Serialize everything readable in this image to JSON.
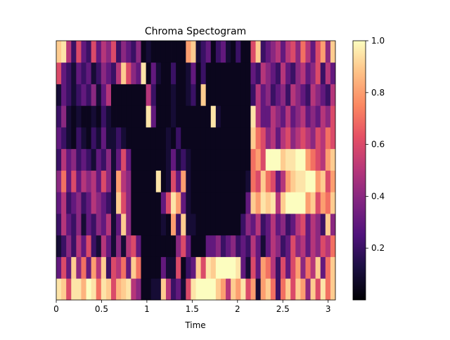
{
  "chart_data": {
    "type": "heatmap",
    "title": "Chroma Spectogram",
    "xlabel": "Time",
    "ylabel": "",
    "xlim": [
      0,
      3.08
    ],
    "x_ticks": [
      "0",
      "0.5",
      "1",
      "1.5",
      "2",
      "2.5",
      "3"
    ],
    "colorbar": {
      "colormap": "magma",
      "range": [
        0.0,
        1.0
      ],
      "ticks": [
        "0.2",
        "0.4",
        "0.6",
        "0.8",
        "1.0"
      ]
    },
    "n_time_frames": 56,
    "n_chroma": 12,
    "rows_bottom_to_top": [
      [
        0.95,
        0.9,
        0.6,
        0.95,
        0.95,
        0.85,
        1.0,
        0.95,
        0.7,
        0.95,
        0.9,
        0.6,
        0.85,
        0.9,
        0.95,
        0.5,
        0.4,
        0.05,
        0.05,
        0.1,
        0.1,
        0.9,
        0.5,
        0.2,
        0.3,
        0.1,
        0.6,
        0.95,
        1.0,
        1.0,
        1.0,
        1.0,
        0.9,
        0.8,
        0.5,
        0.9,
        0.8,
        0.95,
        0.6,
        0.8,
        0.1,
        0.8,
        0.9,
        0.7,
        0.2,
        0.7,
        0.9,
        0.6,
        0.9,
        0.8,
        0.4,
        0.9,
        0.6,
        0.95,
        0.7,
        0.9
      ],
      [
        0.3,
        0.6,
        0.3,
        0.9,
        0.4,
        0.7,
        0.3,
        0.8,
        0.5,
        0.9,
        0.2,
        0.6,
        0.5,
        0.7,
        0.3,
        0.9,
        0.7,
        0.05,
        0.05,
        0.05,
        0.05,
        0.3,
        0.1,
        0.1,
        0.6,
        0.05,
        0.2,
        0.3,
        0.9,
        0.6,
        0.95,
        0.9,
        1.0,
        1.0,
        1.0,
        1.0,
        0.95,
        0.3,
        0.1,
        0.6,
        0.3,
        0.8,
        0.7,
        0.5,
        0.2,
        0.6,
        0.3,
        0.6,
        0.8,
        0.4,
        0.7,
        0.5,
        0.9,
        0.3,
        0.7,
        0.9
      ],
      [
        0.1,
        0.2,
        0.4,
        0.2,
        0.5,
        0.3,
        0.6,
        0.2,
        0.1,
        0.5,
        0.3,
        0.1,
        0.4,
        0.1,
        0.5,
        0.6,
        0.3,
        0.05,
        0.05,
        0.05,
        0.05,
        0.05,
        0.05,
        0.05,
        0.4,
        0.6,
        0.3,
        0.05,
        0.05,
        0.05,
        0.3,
        0.3,
        0.4,
        0.2,
        0.3,
        0.4,
        0.2,
        0.3,
        0.2,
        0.5,
        0.3,
        0.1,
        0.3,
        0.5,
        0.4,
        0.2,
        0.3,
        0.6,
        0.4,
        0.5,
        0.3,
        0.5,
        0.4,
        0.6,
        0.5,
        0.7
      ],
      [
        0.2,
        0.5,
        0.3,
        0.2,
        0.4,
        0.1,
        0.3,
        0.2,
        0.4,
        0.3,
        0.5,
        0.1,
        0.3,
        0.9,
        0.4,
        0.05,
        0.05,
        0.05,
        0.05,
        0.05,
        0.05,
        0.1,
        0.05,
        0.8,
        0.2,
        0.9,
        0.1,
        0.1,
        0.05,
        0.05,
        0.05,
        0.05,
        0.05,
        0.05,
        0.05,
        0.05,
        0.05,
        0.2,
        0.4,
        0.3,
        0.5,
        0.2,
        0.3,
        0.5,
        0.3,
        0.4,
        0.2,
        0.3,
        0.5,
        0.6,
        0.3,
        0.5,
        0.4,
        0.2,
        0.9,
        0.4
      ],
      [
        0.3,
        0.5,
        0.2,
        0.3,
        0.4,
        0.2,
        0.3,
        0.5,
        0.4,
        0.3,
        0.2,
        0.1,
        0.9,
        0.6,
        0.4,
        0.05,
        0.05,
        0.05,
        0.05,
        0.05,
        0.05,
        0.3,
        0.6,
        0.95,
        0.8,
        0.3,
        0.1,
        0.05,
        0.05,
        0.05,
        0.05,
        0.05,
        0.05,
        0.05,
        0.05,
        0.05,
        0.05,
        0.05,
        0.3,
        0.9,
        0.8,
        0.95,
        0.9,
        0.95,
        0.5,
        0.9,
        1.0,
        1.0,
        1.0,
        1.0,
        0.8,
        0.9,
        0.6,
        0.8,
        0.7,
        0.9
      ],
      [
        0.4,
        0.7,
        0.3,
        0.6,
        0.3,
        0.5,
        0.4,
        0.5,
        0.3,
        0.6,
        0.4,
        0.1,
        0.8,
        0.5,
        0.4,
        0.05,
        0.05,
        0.05,
        0.05,
        0.05,
        0.95,
        0.05,
        0.1,
        0.6,
        0.3,
        0.8,
        0.1,
        0.05,
        0.05,
        0.05,
        0.05,
        0.05,
        0.05,
        0.05,
        0.05,
        0.05,
        0.05,
        0.05,
        0.1,
        0.7,
        0.6,
        0.9,
        0.7,
        0.6,
        0.3,
        0.5,
        0.8,
        0.9,
        0.95,
        0.95,
        1.0,
        1.0,
        0.8,
        0.9,
        0.6,
        0.8
      ],
      [
        0.2,
        0.5,
        0.3,
        0.4,
        0.2,
        0.3,
        0.2,
        0.1,
        0.3,
        0.2,
        0.4,
        0.1,
        0.3,
        0.6,
        0.3,
        0.05,
        0.05,
        0.05,
        0.05,
        0.05,
        0.05,
        0.05,
        0.1,
        0.3,
        0.1,
        0.2,
        0.1,
        0.05,
        0.05,
        0.05,
        0.05,
        0.05,
        0.05,
        0.05,
        0.05,
        0.05,
        0.05,
        0.05,
        0.05,
        0.7,
        0.8,
        0.6,
        1.0,
        1.0,
        1.0,
        0.9,
        0.95,
        0.95,
        1.0,
        1.0,
        0.8,
        0.7,
        0.6,
        0.5,
        0.8,
        0.9
      ],
      [
        0.3,
        0.2,
        0.1,
        0.05,
        0.2,
        0.1,
        0.05,
        0.2,
        0.1,
        0.3,
        0.1,
        0.1,
        0.2,
        0.1,
        0.05,
        0.05,
        0.05,
        0.05,
        0.05,
        0.05,
        0.05,
        0.05,
        0.1,
        0.05,
        0.2,
        0.05,
        0.05,
        0.05,
        0.05,
        0.05,
        0.05,
        0.05,
        0.05,
        0.05,
        0.05,
        0.05,
        0.05,
        0.05,
        0.05,
        0.9,
        0.7,
        0.6,
        0.4,
        0.5,
        0.3,
        0.5,
        0.6,
        0.4,
        0.5,
        0.6,
        0.5,
        0.4,
        0.6,
        0.5,
        0.7,
        0.6
      ],
      [
        0.2,
        0.4,
        0.1,
        0.05,
        0.1,
        0.05,
        0.05,
        0.1,
        0.05,
        0.2,
        0.1,
        0.05,
        0.05,
        0.05,
        0.05,
        0.05,
        0.05,
        0.05,
        0.95,
        0.3,
        0.05,
        0.05,
        0.05,
        0.1,
        0.05,
        0.05,
        0.05,
        0.05,
        0.05,
        0.05,
        0.05,
        0.95,
        0.1,
        0.05,
        0.05,
        0.05,
        0.05,
        0.05,
        0.05,
        0.95,
        0.5,
        0.3,
        0.3,
        0.5,
        0.4,
        0.3,
        0.5,
        0.3,
        0.4,
        0.5,
        0.3,
        0.4,
        0.3,
        0.5,
        0.4,
        0.6
      ],
      [
        0.1,
        0.3,
        0.2,
        0.1,
        0.2,
        0.3,
        0.2,
        0.4,
        0.1,
        0.3,
        0.5,
        0.05,
        0.05,
        0.05,
        0.05,
        0.05,
        0.05,
        0.05,
        0.5,
        0.2,
        0.05,
        0.05,
        0.05,
        0.1,
        0.05,
        0.05,
        0.1,
        0.2,
        0.05,
        0.9,
        0.05,
        0.05,
        0.05,
        0.05,
        0.05,
        0.05,
        0.05,
        0.05,
        0.05,
        0.2,
        0.5,
        0.3,
        0.4,
        0.2,
        0.3,
        0.4,
        0.2,
        0.5,
        0.4,
        0.3,
        0.2,
        0.5,
        0.4,
        0.3,
        0.2,
        0.5
      ],
      [
        0.6,
        0.3,
        0.2,
        0.1,
        0.3,
        0.2,
        0.3,
        0.1,
        0.2,
        0.4,
        0.3,
        0.2,
        0.5,
        0.9,
        0.6,
        0.4,
        0.3,
        0.95,
        0.05,
        0.3,
        0.1,
        0.05,
        0.05,
        0.2,
        0.05,
        0.05,
        0.1,
        0.3,
        0.05,
        0.2,
        0.05,
        0.05,
        0.05,
        0.05,
        0.05,
        0.05,
        0.05,
        0.05,
        0.05,
        0.3,
        0.2,
        0.5,
        0.4,
        0.3,
        0.2,
        0.5,
        0.3,
        0.2,
        0.4,
        0.5,
        0.3,
        0.4,
        0.6,
        0.2,
        0.5,
        0.3
      ],
      [
        0.9,
        0.95,
        0.5,
        0.2,
        0.6,
        0.3,
        0.2,
        0.6,
        0.3,
        0.5,
        0.4,
        0.6,
        0.2,
        0.4,
        0.3,
        0.2,
        0.4,
        0.05,
        0.1,
        0.05,
        0.05,
        0.05,
        0.05,
        0.05,
        0.05,
        0.05,
        0.8,
        0.9,
        0.1,
        0.2,
        0.3,
        0.05,
        0.2,
        0.3,
        0.1,
        0.05,
        0.2,
        0.05,
        0.05,
        0.6,
        0.9,
        0.2,
        0.3,
        0.4,
        0.5,
        0.3,
        0.5,
        0.6,
        0.4,
        0.7,
        0.5,
        0.3,
        0.6,
        0.8,
        0.4,
        0.9
      ]
    ]
  }
}
